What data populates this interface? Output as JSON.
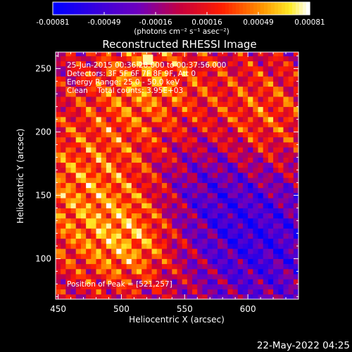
{
  "chart_data": {
    "type": "heatmap",
    "title": "Reconstructed RHESSI Image",
    "xlabel": "Heliocentric X (arcsec)",
    "ylabel": "Heliocentric Y (arcsec)",
    "xlim": [
      448,
      640
    ],
    "ylim": [
      68,
      263
    ],
    "xticks": [
      450,
      500,
      550,
      600
    ],
    "yticks": [
      100,
      150,
      200,
      250
    ],
    "colorbar": {
      "min": -0.00081,
      "max": 0.00081,
      "ticks": [
        "-0.00081",
        "-0.00049",
        "-0.00016",
        "0.00016",
        "0.00049",
        "0.00081"
      ],
      "unit": "(photons cm⁻² s⁻¹ asec⁻²)",
      "colormap": "blue-purple-red-yellow-white"
    },
    "annotations": [
      "25-Jun-2015 00:36:28.000 to 00:37:56.000",
      "Detectors: 3F 5F 6F 7F 8F 9F, Att 0",
      "Energy Range: 25.0 - 50.0 keV",
      "Clean    Total counts: 3.95E+03"
    ],
    "peak_label": "Position of Peak = [521,257]",
    "peak": [
      521,
      257
    ]
  },
  "timestamp": "22-May-2022 04:25"
}
